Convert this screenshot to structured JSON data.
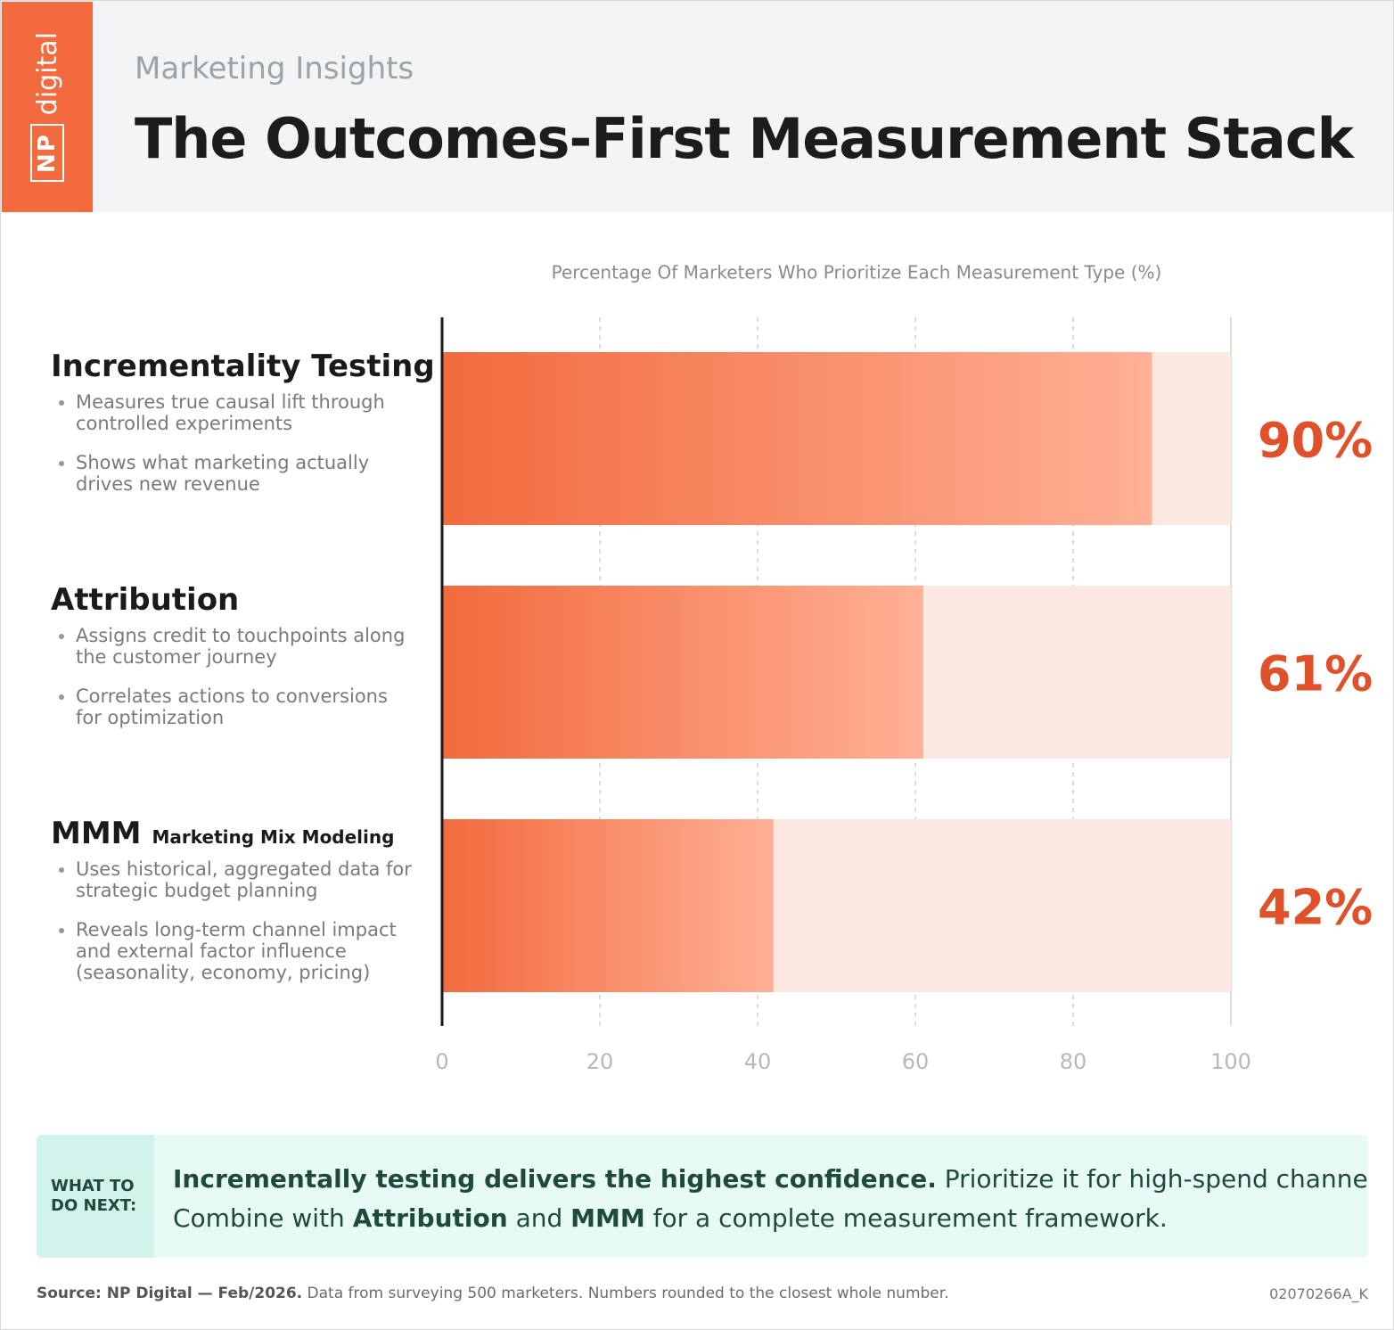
{
  "header": {
    "subtitle": "Marketing Insights",
    "title": "The Outcomes-First Measurement Stack"
  },
  "logo": {
    "mark": "NP",
    "text": "digital"
  },
  "chart_data": {
    "type": "bar",
    "orientation": "horizontal",
    "axis_title": "Percentage Of Marketers Who Prioritize Each Measurement Type (%)",
    "categories": [
      "Incrementality Testing",
      "Attribution",
      "MMM"
    ],
    "category_details": [
      {
        "bullets": [
          "Measures true causal lift through controlled experiments",
          "Shows what marketing actually drives new revenue"
        ]
      },
      {
        "bullets": [
          "Assigns credit to touchpoints along the customer journey",
          "Correlates actions to conversions for optimization"
        ]
      },
      {
        "subtitle": "Marketing Mix Modeling",
        "bullets": [
          "Uses historical, aggregated data for strategic budget planning",
          "Reveals long-term channel impact and external factor influence (seasonality, economy, pricing)"
        ]
      }
    ],
    "values": [
      90,
      61,
      42
    ],
    "value_labels": [
      "90%",
      "61%",
      "42%"
    ],
    "color": "#f26a3d",
    "color_end": "#ffb096",
    "track_color": "#fde8e1",
    "label_color": "#e0512a",
    "xlim": [
      0,
      100
    ],
    "xticks": [
      0,
      20,
      40,
      60,
      80,
      100
    ],
    "grid": true
  },
  "callout": {
    "label": "WHAT TO DO NEXT:",
    "lines": [
      [
        {
          "text": "Incrementally testing delivers the highest confidence.",
          "bold": true
        },
        {
          "text": " Prioritize it for high-spend channels.",
          "bold": false
        }
      ],
      [
        {
          "text": "Combine with ",
          "bold": false
        },
        {
          "text": "Attribution",
          "bold": true
        },
        {
          "text": " and ",
          "bold": false
        },
        {
          "text": "MMM",
          "bold": true
        },
        {
          "text": " for a complete measurement framework.",
          "bold": false
        }
      ]
    ]
  },
  "footer": {
    "source": "Source: NP Digital — Feb/2026.",
    "note": " Data from surveying 500 marketers. Numbers rounded to the closest whole number.",
    "code": "02070266A_K"
  }
}
